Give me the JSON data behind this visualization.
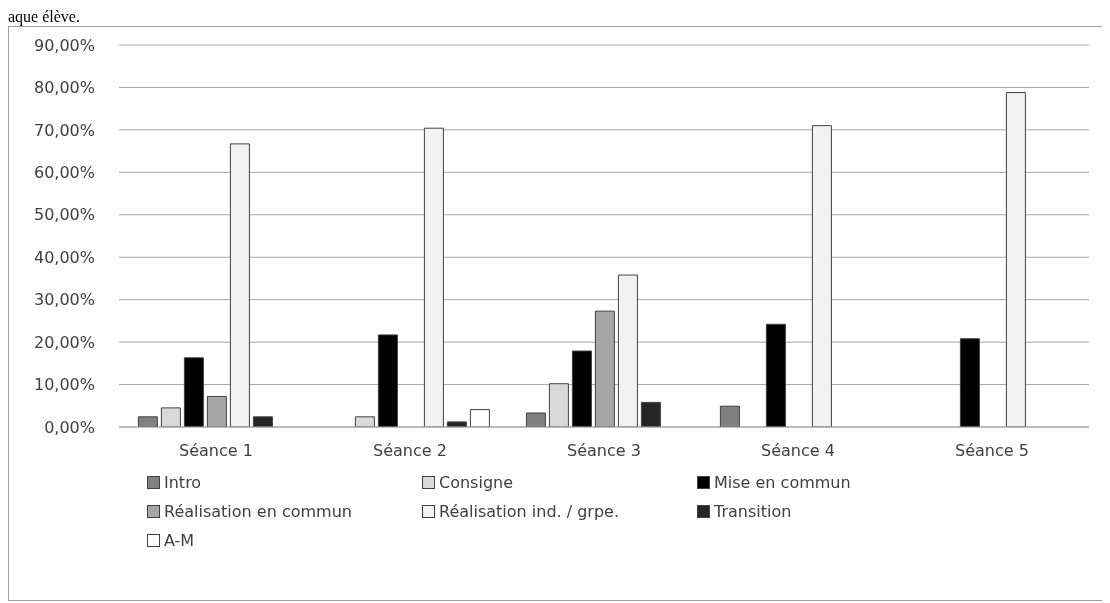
{
  "chart_data": {
    "type": "bar",
    "annotations": [
      "aque élève."
    ],
    "categories": [
      "Séance 1",
      "Séance 2",
      "Séance 3",
      "Séance 4",
      "Séance 5"
    ],
    "series": [
      {
        "name": "Intro",
        "color": "#808080",
        "values": [
          2.4,
          0,
          3.3,
          4.9,
          0
        ]
      },
      {
        "name": "Consigne",
        "color": "#d9d9d9",
        "values": [
          4.5,
          2.4,
          10.2,
          0,
          0
        ]
      },
      {
        "name": "Mise en commun",
        "color": "#000000",
        "values": [
          16.3,
          21.7,
          17.9,
          24.2,
          20.8
        ]
      },
      {
        "name": "Réalisation en commun",
        "color": "#a6a6a6",
        "values": [
          7.2,
          0,
          27.3,
          0,
          0
        ]
      },
      {
        "name": "Réalisation ind. / grpe.",
        "color": "#f2f2f2",
        "values": [
          66.7,
          70.4,
          35.8,
          71.0,
          78.8
        ]
      },
      {
        "name": "Transition",
        "color": "#262626",
        "values": [
          2.4,
          1.2,
          5.8,
          0,
          0
        ]
      },
      {
        "name": "A-M",
        "color": "#ffffff",
        "values": [
          0,
          4.1,
          0,
          0,
          0
        ]
      }
    ],
    "ylim": [
      0,
      90
    ],
    "yticks": [
      {
        "value": 0,
        "label": "0,00%"
      },
      {
        "value": 10,
        "label": "10,00%"
      },
      {
        "value": 20,
        "label": "20,00%"
      },
      {
        "value": 30,
        "label": "30,00%"
      },
      {
        "value": 40,
        "label": "40,00%"
      },
      {
        "value": 50,
        "label": "50,00%"
      },
      {
        "value": 60,
        "label": "60,00%"
      },
      {
        "value": 70,
        "label": "70,00%"
      },
      {
        "value": 80,
        "label": "80,00%"
      },
      {
        "value": 90,
        "label": "90,00%"
      }
    ],
    "grid": "y",
    "legend": "bottom"
  }
}
